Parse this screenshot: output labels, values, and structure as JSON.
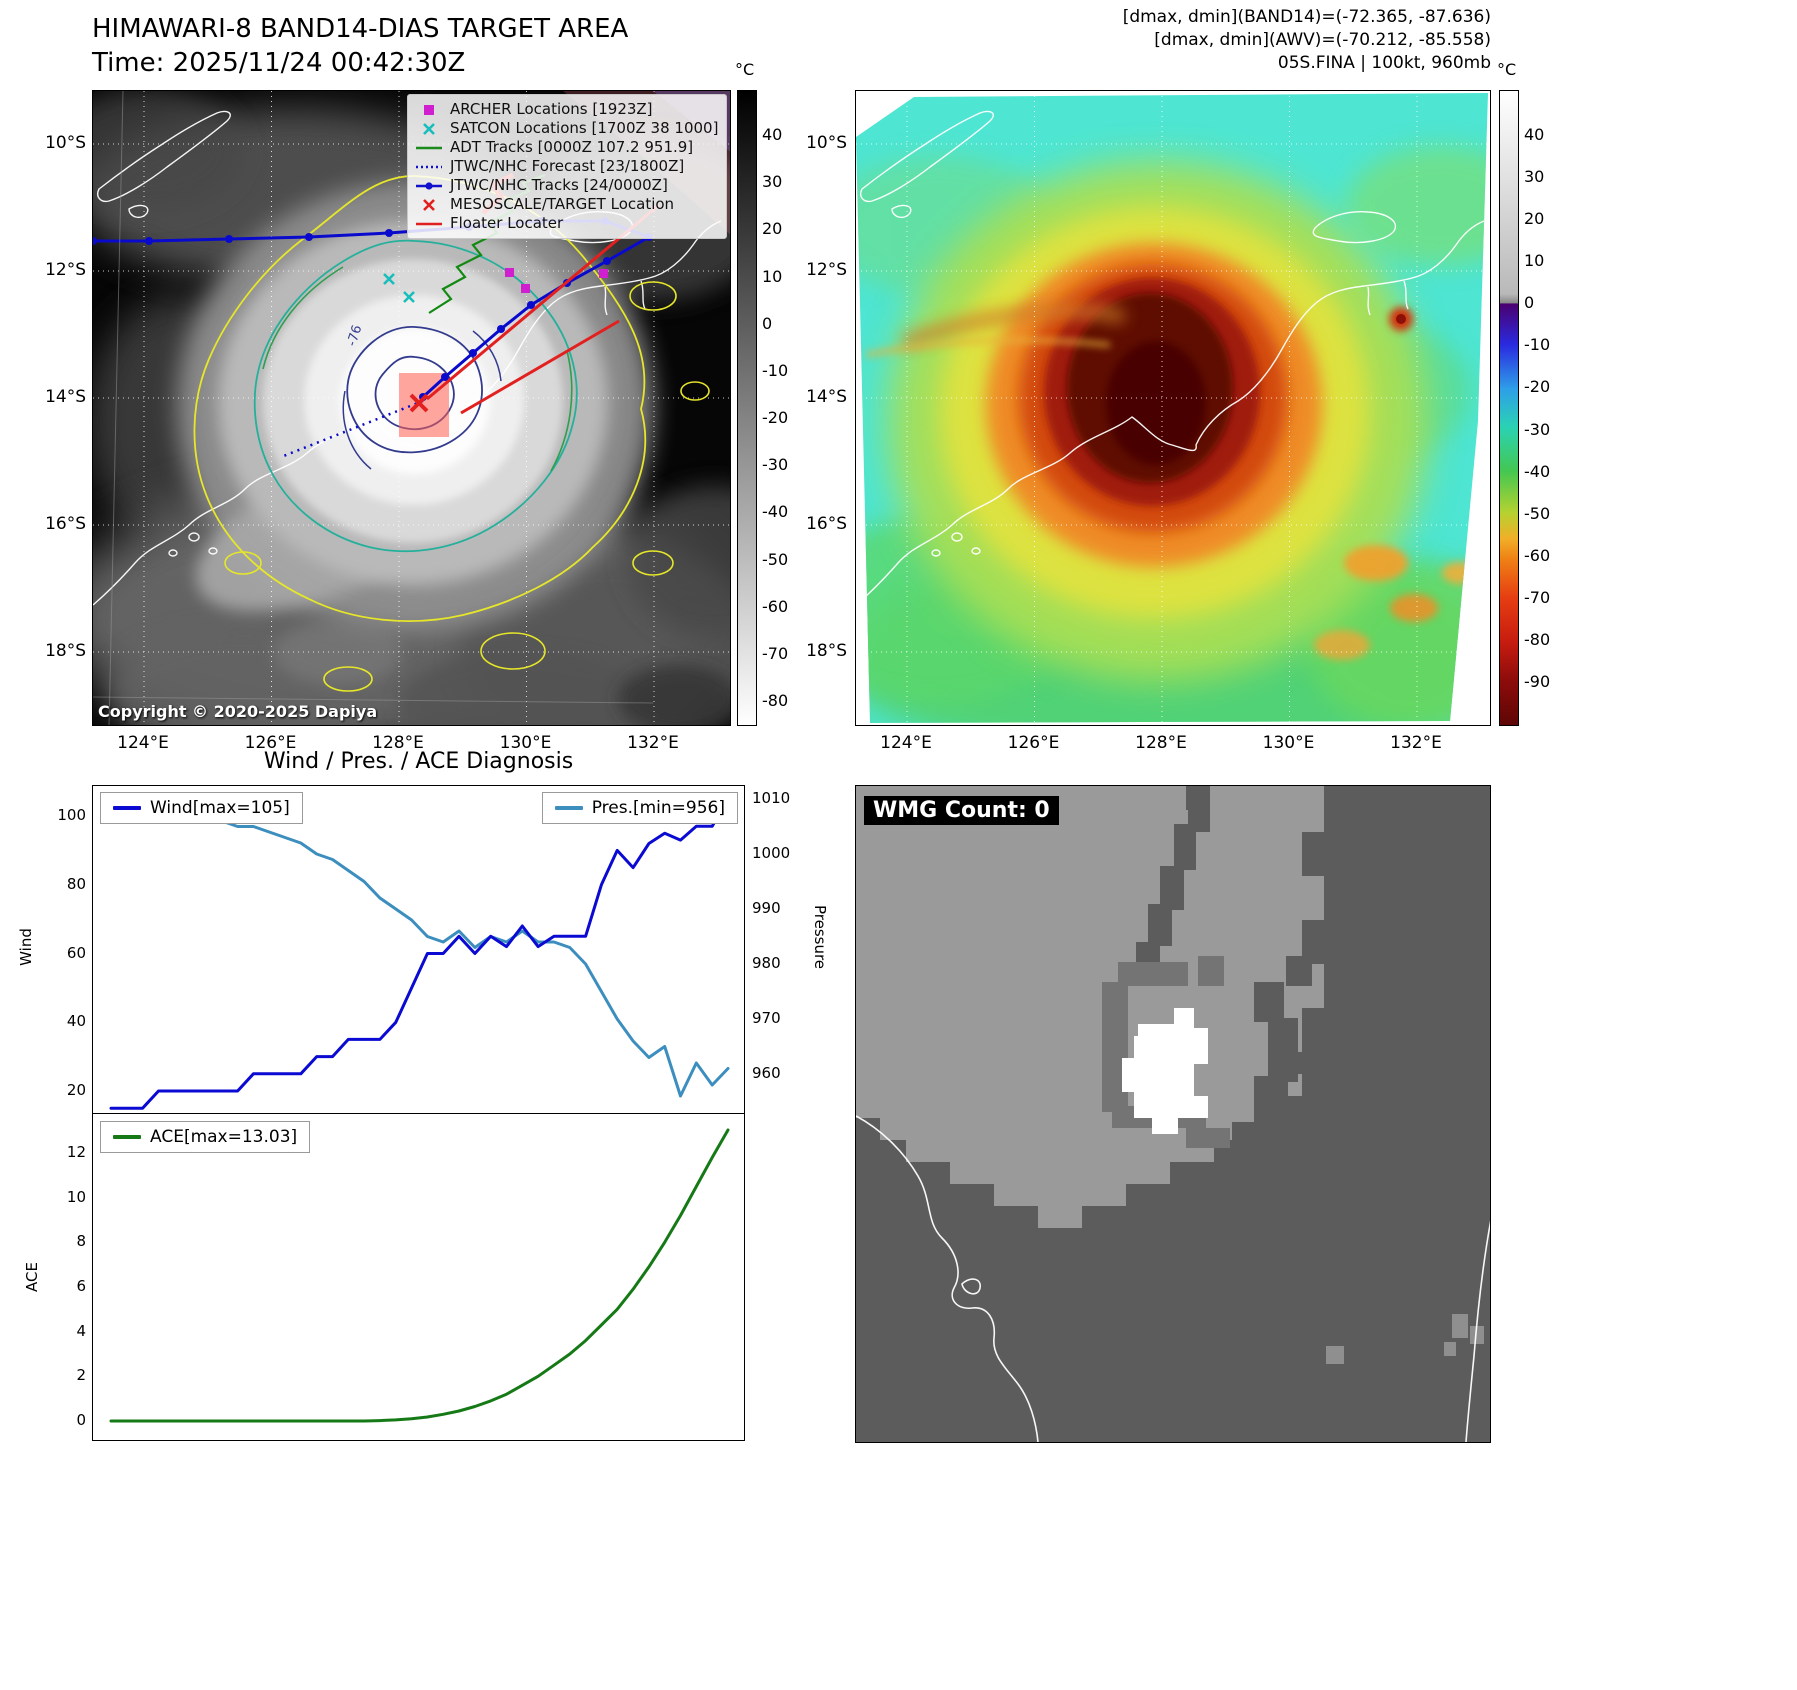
{
  "panel_tl": {
    "title": "HIMAWARI-8 BAND14-DIAS TARGET AREA",
    "subtitle": "Time: 2025/11/24 00:42:30Z",
    "copyright": "Copyright © 2020-2025 Dapiya",
    "contour_label": "-76",
    "colorbar": {
      "unit": "°C",
      "ticks": [
        "40",
        "30",
        "20",
        "10",
        "0",
        "-10",
        "-20",
        "-30",
        "-40",
        "-50",
        "-60",
        "-70",
        "-80"
      ]
    },
    "lat_ticks": [
      "10°S",
      "12°S",
      "14°S",
      "16°S",
      "18°S"
    ],
    "lon_ticks": [
      "124°E",
      "126°E",
      "128°E",
      "130°E",
      "132°E"
    ],
    "legend": [
      {
        "label": "ARCHER Locations [1923Z]",
        "marker": "square",
        "color": "#cf1fcf"
      },
      {
        "label": "SATCON Locations [1700Z 38 1000]",
        "marker": "x",
        "color": "#17bebb"
      },
      {
        "label": "ADT Tracks [0000Z 107.2 951.9]",
        "marker": "line",
        "color": "#1a8a1a"
      },
      {
        "label": "JTWC/NHC Forecast [23/1800Z]",
        "marker": "dotted",
        "color": "#1111cc"
      },
      {
        "label": "JTWC/NHC Tracks [24/0000Z]",
        "marker": "line-dot",
        "color": "#1111cc"
      },
      {
        "label": "MESOSCALE/TARGET Location",
        "marker": "x",
        "color": "#e02020"
      },
      {
        "label": "Floater Locater",
        "marker": "line",
        "color": "#e02020"
      }
    ]
  },
  "panel_tr": {
    "header_lines": [
      "[dmax, dmin](BAND14)=(-72.365, -87.636)",
      "[dmax, dmin](AWV)=(-70.212, -85.558)",
      "05S.FINA | 100kt, 960mb"
    ],
    "colorbar": {
      "unit": "°C",
      "ticks": [
        "40",
        "30",
        "20",
        "10",
        "0",
        "-10",
        "-20",
        "-30",
        "-40",
        "-50",
        "-60",
        "-70",
        "-80",
        "-90"
      ]
    },
    "lat_ticks": [
      "10°S",
      "12°S",
      "14°S",
      "16°S",
      "18°S"
    ],
    "lon_ticks": [
      "124°E",
      "126°E",
      "128°E",
      "130°E",
      "132°E"
    ]
  },
  "diagnosis": {
    "title": "Wind / Pres. / ACE Diagnosis",
    "ylabel_wind": "Wind",
    "ylabel_pressure": "Pressure",
    "ylabel_ace": "ACE"
  },
  "panel_br": {
    "wmg_label": "WMG Count: 0"
  },
  "chart_data": [
    {
      "type": "line",
      "title": "Wind / Pres. / ACE Diagnosis",
      "x": [
        0,
        1,
        2,
        3,
        4,
        5,
        6,
        7,
        8,
        9,
        10,
        11,
        12,
        13,
        14,
        15,
        16,
        17,
        18,
        19,
        20,
        21,
        22,
        23,
        24,
        25,
        26,
        27,
        28,
        29,
        30,
        31,
        32,
        33,
        34,
        35,
        36,
        37,
        38,
        39
      ],
      "series": [
        {
          "name": "Wind[max=105]",
          "color": "#0a0ad2",
          "axis": "left",
          "values": [
            15,
            15,
            15,
            20,
            20,
            20,
            20,
            20,
            20,
            25,
            25,
            25,
            25,
            30,
            30,
            35,
            35,
            35,
            40,
            50,
            60,
            60,
            65,
            60,
            65,
            62,
            68,
            62,
            65,
            65,
            65,
            80,
            90,
            85,
            92,
            95,
            93,
            97,
            97,
            105
          ]
        },
        {
          "name": "Pres.[min=956]",
          "color": "#3c8ebe",
          "axis": "right",
          "values": [
            1007,
            1007,
            1007,
            1007,
            1007,
            1007,
            1006,
            1006,
            1005,
            1005,
            1004,
            1003,
            1002,
            1000,
            999,
            997,
            995,
            992,
            990,
            988,
            985,
            984,
            986,
            983,
            985,
            984,
            986,
            984,
            984,
            983,
            980,
            975,
            970,
            966,
            963,
            965,
            956,
            962,
            958,
            961
          ]
        }
      ],
      "ylabel_left": "Wind",
      "ylabel_right": "Pressure",
      "ylim_left": [
        13,
        108
      ],
      "ylim_right": [
        953,
        1012
      ],
      "yticks_left": [
        20,
        40,
        60,
        80,
        100
      ],
      "yticks_right": [
        960,
        970,
        980,
        990,
        1000,
        1010
      ],
      "grid": false,
      "legend_position": "top"
    },
    {
      "type": "line",
      "x": [
        0,
        1,
        2,
        3,
        4,
        5,
        6,
        7,
        8,
        9,
        10,
        11,
        12,
        13,
        14,
        15,
        16,
        17,
        18,
        19,
        20,
        21,
        22,
        23,
        24,
        25,
        26,
        27,
        28,
        29,
        30,
        31,
        32,
        33,
        34,
        35,
        36,
        37,
        38,
        39
      ],
      "series": [
        {
          "name": "ACE[max=13.03]",
          "color": "#157a15",
          "values": [
            0,
            0,
            0,
            0,
            0,
            0,
            0,
            0,
            0,
            0,
            0,
            0,
            0,
            0,
            0,
            0,
            0,
            0.02,
            0.05,
            0.1,
            0.18,
            0.3,
            0.45,
            0.65,
            0.9,
            1.2,
            1.6,
            2.0,
            2.5,
            3.0,
            3.6,
            4.3,
            5.0,
            5.9,
            6.9,
            8.0,
            9.2,
            10.5,
            11.8,
            13.03
          ]
        }
      ],
      "ylabel": "ACE",
      "ylim": [
        -0.65,
        13.75
      ],
      "yticks": [
        0,
        2,
        4,
        6,
        8,
        10,
        12
      ],
      "grid": false
    }
  ]
}
